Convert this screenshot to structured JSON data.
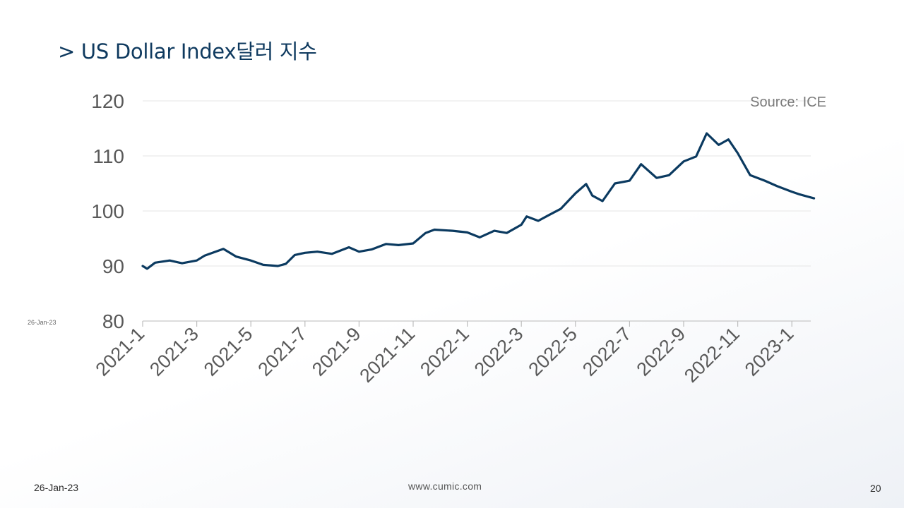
{
  "slide": {
    "title": "> US Dollar Index달러 지수",
    "footer_date": "26-Jan-23",
    "side_date": "26-Jan-23",
    "website": "www.cumic.com",
    "page_number": "20",
    "title_color": "#0f3a5f"
  },
  "chart_data": {
    "type": "line",
    "title": "",
    "xlabel": "",
    "ylabel": "",
    "source_note": "Source: ICE",
    "ylim": [
      80,
      120
    ],
    "yticks": [
      "120",
      "110",
      "100",
      "90",
      "80"
    ],
    "xtick_labels": [
      "2021-1",
      "2021-3",
      "2021-5",
      "2021-7",
      "2021-9",
      "2021-11",
      "2022-1",
      "2022-3",
      "2022-5",
      "2022-7",
      "2022-9",
      "2022-11",
      "2023-1"
    ],
    "grid": true,
    "line_color": "#0b3a60",
    "series": [
      {
        "x": [
          "2021-01-01",
          "2021-01-06",
          "2021-01-15",
          "2021-02-01",
          "2021-02-15",
          "2021-03-01",
          "2021-03-10",
          "2021-03-31",
          "2021-04-15",
          "2021-05-01",
          "2021-05-15",
          "2021-06-01",
          "2021-06-10",
          "2021-06-20",
          "2021-07-01",
          "2021-07-15",
          "2021-08-01",
          "2021-08-20",
          "2021-09-01",
          "2021-09-15",
          "2021-10-01",
          "2021-10-15",
          "2021-11-01",
          "2021-11-15",
          "2021-11-25",
          "2021-12-15",
          "2022-01-01",
          "2022-01-15",
          "2022-02-01",
          "2022-02-15",
          "2022-03-01",
          "2022-03-07",
          "2022-03-20",
          "2022-04-01",
          "2022-04-15",
          "2022-05-01",
          "2022-05-13",
          "2022-05-20",
          "2022-06-01",
          "2022-06-15",
          "2022-07-01",
          "2022-07-14",
          "2022-08-01",
          "2022-08-15",
          "2022-09-01",
          "2022-09-15",
          "2022-09-27",
          "2022-10-10",
          "2022-10-21",
          "2022-11-01",
          "2022-11-15",
          "2022-12-01",
          "2022-12-15",
          "2023-01-01",
          "2023-01-10",
          "2023-01-26"
        ],
        "values": [
          90.0,
          89.5,
          90.6,
          91.0,
          90.5,
          91.0,
          91.9,
          93.1,
          91.7,
          91.0,
          90.2,
          90.0,
          90.4,
          92.0,
          92.4,
          92.6,
          92.2,
          93.4,
          92.6,
          93.0,
          94.0,
          93.8,
          94.1,
          96.0,
          96.6,
          96.4,
          96.1,
          95.2,
          96.4,
          96.0,
          97.5,
          99.0,
          98.2,
          99.2,
          100.4,
          103.2,
          104.9,
          102.8,
          101.8,
          105.0,
          105.5,
          108.5,
          106.0,
          106.5,
          109.0,
          109.9,
          114.1,
          112.0,
          113.0,
          110.5,
          106.5,
          105.5,
          104.5,
          103.5,
          103.0,
          102.3
        ]
      }
    ]
  }
}
